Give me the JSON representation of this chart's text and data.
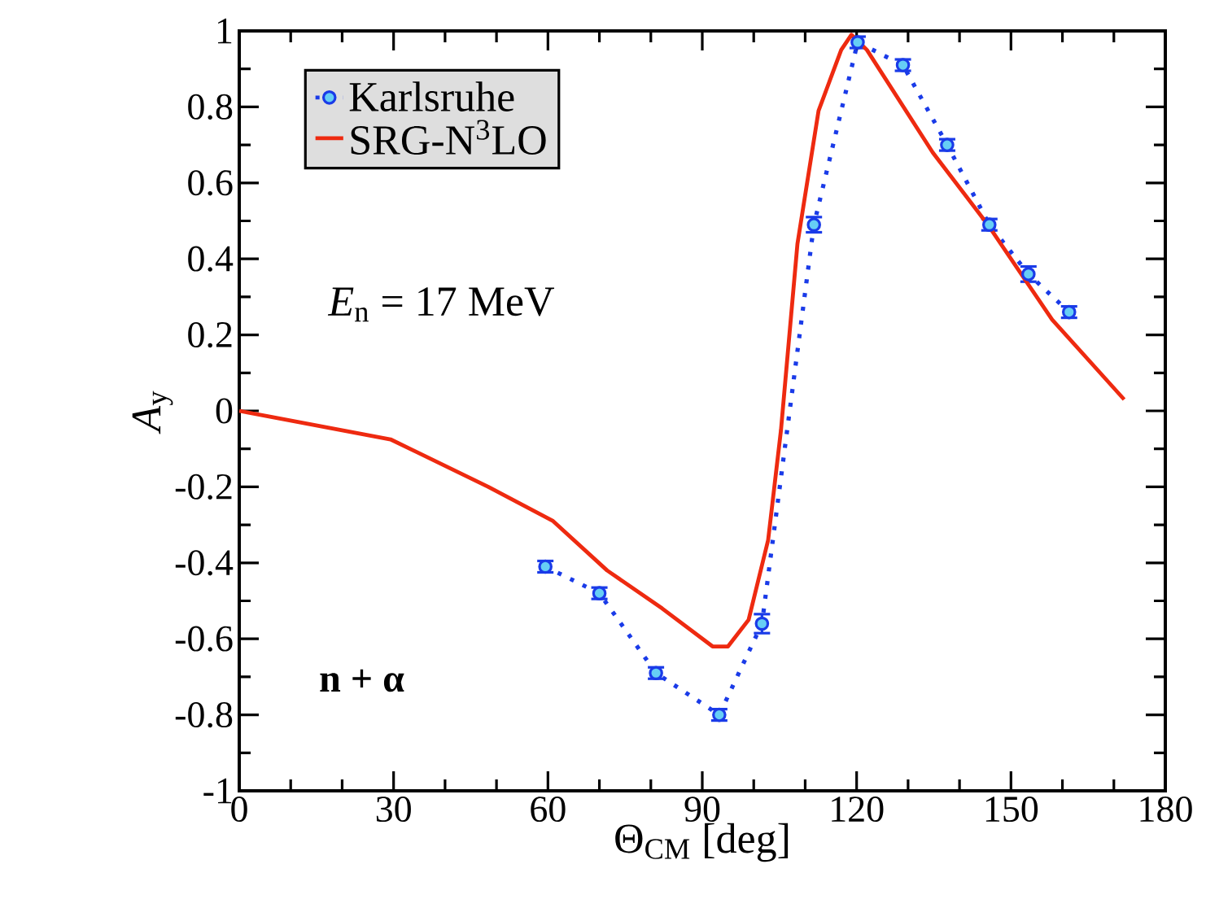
{
  "chart_data": {
    "type": "line",
    "xlabel": "Θ$_{CM}$ [deg]",
    "ylabel": "*A*$_{y}$",
    "xlim": [
      0,
      180
    ],
    "xticks": [
      0,
      30,
      60,
      90,
      120,
      150,
      180
    ],
    "ylim": [
      -1,
      1
    ],
    "yticks": [
      -1,
      -0.8,
      -0.6,
      -0.4,
      -0.2,
      0,
      0.2,
      0.4,
      0.6,
      0.8,
      1
    ],
    "legend": "top left",
    "grid": false,
    "annotations": [
      "*E*$_{n}$ = 17 MeV",
      "**n + α**"
    ],
    "series": [
      {
        "name": "Karlsruhe",
        "color": "#1a3be8",
        "marker": "circle",
        "line_style": "dotted",
        "x": [
          59.5,
          70,
          81,
          93.3,
          101.6,
          111.7,
          120.2,
          129,
          137.6,
          145.8,
          153.4,
          161.3
        ],
        "values": [
          -0.41,
          -0.48,
          -0.69,
          -0.8,
          -0.56,
          0.49,
          0.97,
          0.91,
          0.7,
          0.49,
          0.36,
          0.26
        ],
        "errors": [
          0.015,
          0.015,
          0.015,
          0.015,
          0.025,
          0.02,
          0.015,
          0.015,
          0.015,
          0.015,
          0.02,
          0.015
        ]
      },
      {
        "name": "SRG-N$^{3}$LO",
        "color": "#ee2a10",
        "marker": "none",
        "line_style": "solid",
        "x": [
          0,
          29.4,
          48.4,
          61,
          71.5,
          82.2,
          92,
          95,
          99,
          102.8,
          105.3,
          108.5,
          112.6,
          117,
          119,
          122,
          134.8,
          145.5,
          158,
          172
        ],
        "values": [
          0,
          -0.075,
          -0.2,
          -0.29,
          -0.42,
          -0.52,
          -0.62,
          -0.62,
          -0.55,
          -0.34,
          -0.05,
          0.44,
          0.79,
          0.95,
          0.99,
          0.95,
          0.68,
          0.49,
          0.24,
          0.03
        ]
      }
    ]
  }
}
